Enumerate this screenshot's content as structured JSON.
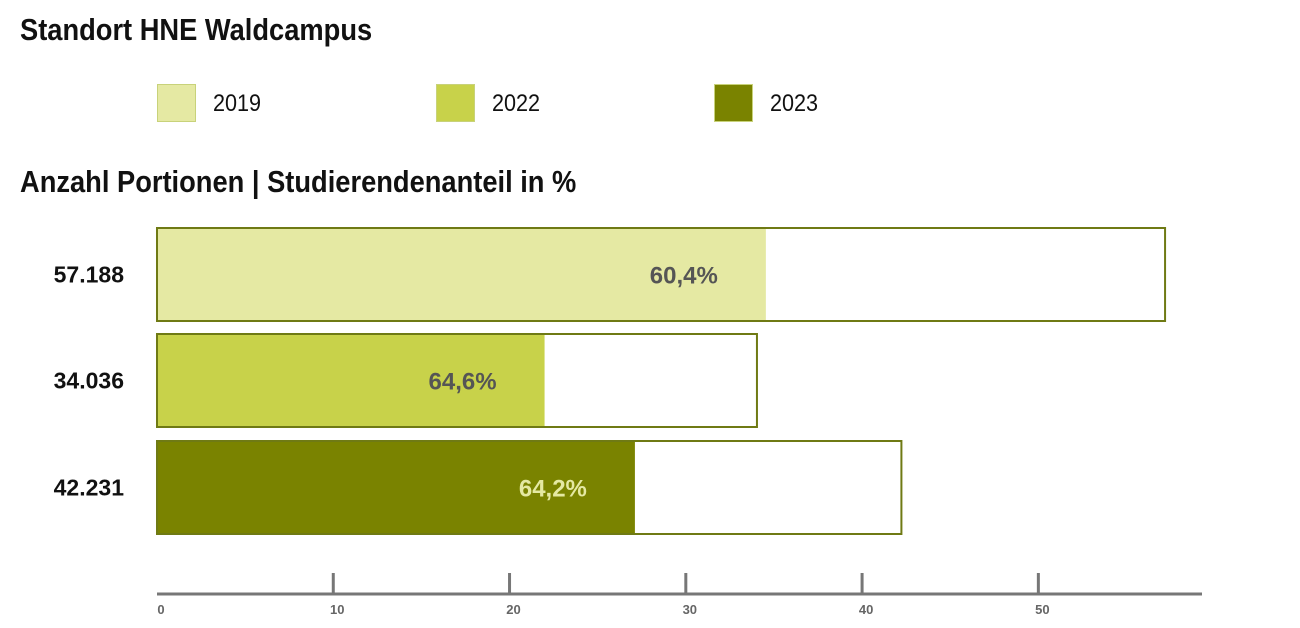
{
  "title": "Standort HNE Waldcampus",
  "subtitle": "Anzahl Portionen | Studierendenanteil in %",
  "legend": [
    {
      "label": "2019",
      "color": "#e5e9a3"
    },
    {
      "label": "2022",
      "color": "#c8d24a"
    },
    {
      "label": "2023",
      "color": "#7a8300"
    }
  ],
  "chart_data": {
    "type": "bar",
    "orientation": "horizontal",
    "title": "Standort HNE Waldcampus",
    "subtitle": "Anzahl Portionen | Studierendenanteil in %",
    "categories": [
      "2019",
      "2022",
      "2023"
    ],
    "total_labels": [
      "57.188",
      "34.036",
      "42.231"
    ],
    "totals": [
      57.188,
      34.036,
      42.231
    ],
    "share_labels": [
      "60,4%",
      "64,6%",
      "64,2%"
    ],
    "shares": [
      60.4,
      64.6,
      64.2
    ],
    "colors": [
      "#e5e9a3",
      "#c8d24a",
      "#7a8300"
    ],
    "share_label_colors": [
      "#555555",
      "#555555",
      "#e5e9a3"
    ],
    "outline_color": "#6f7a14",
    "xlim": [
      0,
      59
    ],
    "xticks": [
      0,
      10,
      20,
      30,
      40,
      50
    ],
    "grid": false,
    "legend_position": "top"
  }
}
